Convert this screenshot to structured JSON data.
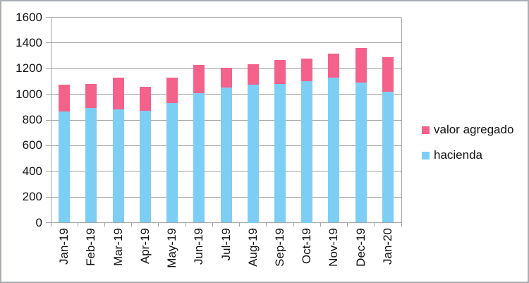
{
  "colors": {
    "hacienda": "#7DCEF4",
    "valor_agregado": "#F4618A",
    "gridline": "#a3a3a3",
    "axis": "#9a9a9a",
    "text": "#111111",
    "border": "#a9aeb5",
    "background": "#ffffff"
  },
  "legend": {
    "items": [
      {
        "label": "valor agregado",
        "color_key": "valor_agregado"
      },
      {
        "label": "hacienda",
        "color_key": "hacienda"
      }
    ]
  },
  "chart_data": {
    "type": "bar",
    "stacked": true,
    "title": "",
    "xlabel": "",
    "ylabel": "",
    "categories": [
      "Jan-19",
      "Feb-19",
      "Mar-19",
      "Apr-19",
      "May-19",
      "Jun-19",
      "Jul-19",
      "Aug-19",
      "Sep-19",
      "Oct-19",
      "Nov-19",
      "Dec-19",
      "Jan-20"
    ],
    "series": [
      {
        "name": "hacienda",
        "color_key": "hacienda",
        "values": [
          865,
          895,
          885,
          870,
          930,
          1010,
          1055,
          1075,
          1080,
          1100,
          1130,
          1090,
          1020
        ]
      },
      {
        "name": "valor agregado",
        "color_key": "valor_agregado",
        "values": [
          210,
          185,
          245,
          190,
          200,
          220,
          150,
          160,
          190,
          180,
          185,
          270,
          270
        ]
      }
    ],
    "totals": [
      1075,
      1080,
      1130,
      1060,
      1130,
      1230,
      1205,
      1235,
      1270,
      1280,
      1315,
      1360,
      1290
    ],
    "ylim": [
      0,
      1600
    ],
    "ytick_step": 200,
    "ytick_labels": [
      "0",
      "200",
      "400",
      "600",
      "800",
      "1000",
      "1200",
      "1400",
      "1600"
    ],
    "grid": true,
    "legend_position": "right",
    "x_labels_rotated_90": true
  }
}
